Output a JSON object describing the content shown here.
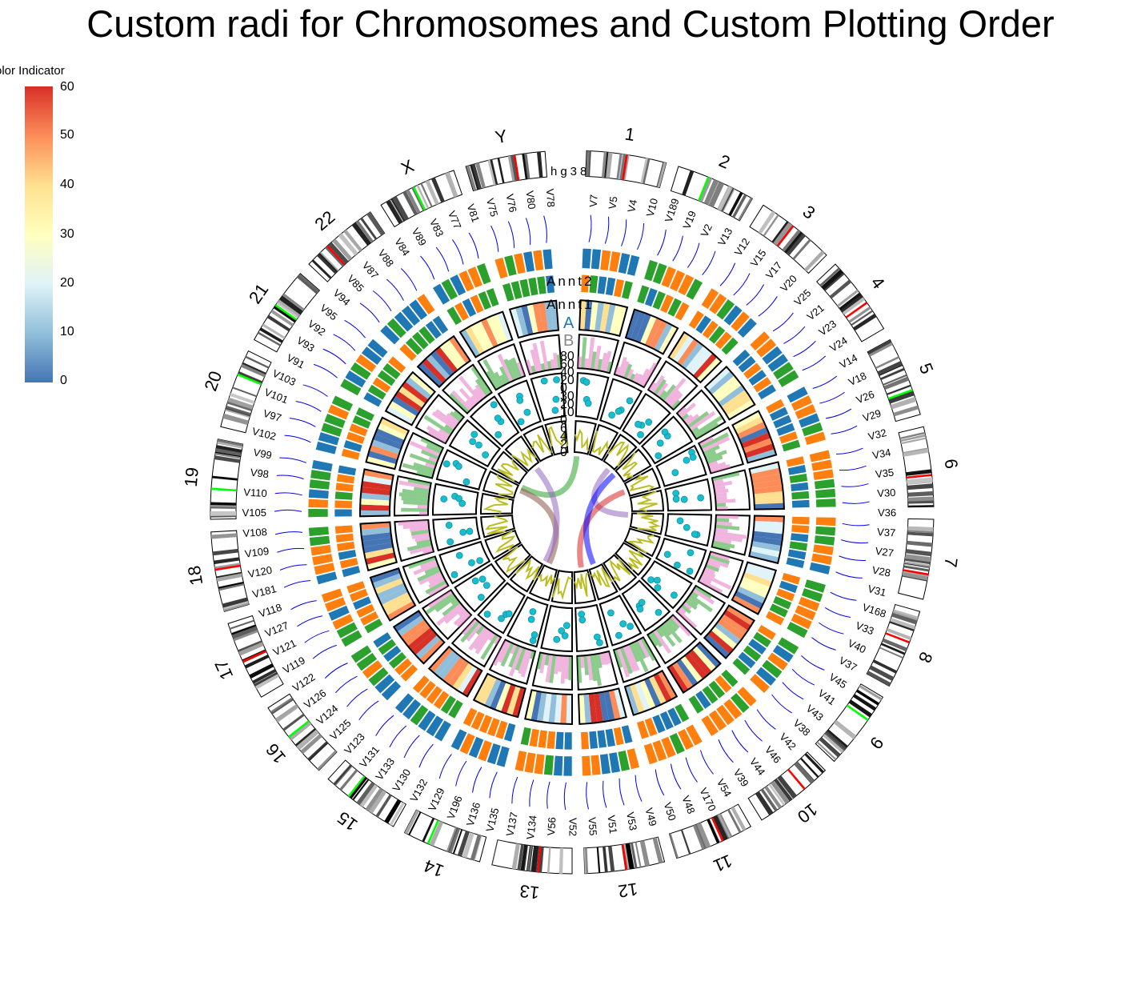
{
  "title": "Custom radi for Chromosomes and Custom Plotting Order",
  "legend": {
    "title": "olor Indicator",
    "ticks": [
      "60",
      "50",
      "40",
      "30",
      "20",
      "10",
      "0"
    ],
    "colors": [
      "#4575b4",
      "#91bfdb",
      "#e0f3f8",
      "#ffffbf",
      "#fee090",
      "#fc8d59",
      "#d73027"
    ]
  },
  "chart_data": {
    "type": "circos",
    "genome": "hg38",
    "chromosomes": [
      "1",
      "2",
      "3",
      "4",
      "5",
      "6",
      "7",
      "8",
      "9",
      "10",
      "11",
      "12",
      "13",
      "14",
      "15",
      "16",
      "17",
      "18",
      "19",
      "20",
      "21",
      "22",
      "X",
      "Y"
    ],
    "track_labels": [
      "Annt2",
      "Annt1",
      "A",
      "B"
    ],
    "axis_ticks": [
      "80",
      "60",
      "40",
      "20",
      "0",
      "30",
      "20",
      "10",
      "0",
      "6",
      "4",
      "2",
      "0"
    ],
    "colorbar_range": [
      0,
      60
    ],
    "categorical_colors": [
      "#ff7f0e",
      "#1f77b4",
      "#2ca02c"
    ],
    "gene_labels": [
      "V7",
      "V5",
      "V4",
      "V10",
      "V189",
      "V19",
      "V2",
      "V13",
      "V12",
      "V15",
      "V17",
      "V20",
      "V25",
      "V21",
      "V23",
      "V24",
      "V14",
      "V18",
      "V26",
      "V29",
      "V32",
      "V34",
      "V35",
      "V30",
      "V36",
      "V37",
      "V27",
      "V28",
      "V31",
      "V168",
      "V33",
      "V40",
      "V37",
      "V45",
      "V41",
      "V43",
      "V38",
      "V42",
      "V46",
      "V44",
      "V39",
      "V54",
      "V170",
      "V48",
      "V50",
      "V49",
      "V53",
      "V51",
      "V55",
      "V52",
      "V56",
      "V134",
      "V137",
      "V135",
      "V136",
      "V196",
      "V129",
      "V132",
      "V130",
      "V133",
      "V131",
      "V123",
      "V125",
      "V124",
      "V126",
      "V122",
      "V119",
      "V121",
      "V127",
      "V118",
      "V181",
      "V120",
      "V109",
      "V108",
      "V105",
      "V110",
      "V98",
      "V99",
      "V102",
      "V97",
      "V101",
      "V103",
      "V91",
      "V93",
      "V92",
      "V95",
      "V94",
      "V85",
      "V87",
      "V88",
      "V84",
      "V89",
      "V83",
      "V77",
      "V81",
      "V75",
      "V76",
      "V80",
      "V78"
    ],
    "links": 6
  }
}
